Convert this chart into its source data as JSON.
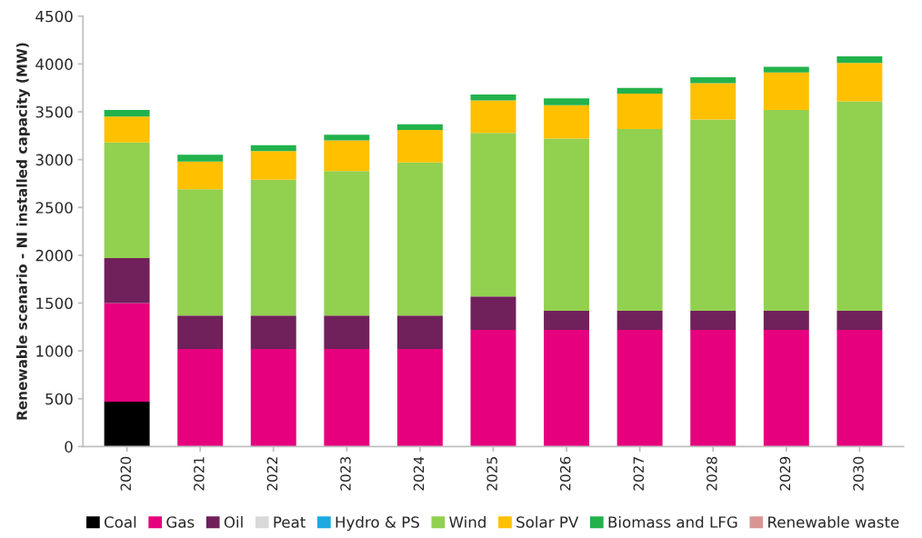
{
  "chart_data": {
    "type": "bar",
    "stacked": true,
    "ylabel": "Renewable scenario - NI installed capacity (MW)",
    "categories": [
      "2020",
      "2021",
      "2022",
      "2023",
      "2024",
      "2025",
      "2026",
      "2027",
      "2028",
      "2029",
      "2030"
    ],
    "series": [
      {
        "name": "Coal",
        "color": "#000000",
        "values": [
          470,
          null,
          null,
          null,
          null,
          null,
          null,
          null,
          null,
          null,
          null
        ]
      },
      {
        "name": "Gas",
        "color": "#e6007e",
        "values": [
          1030,
          1020,
          1020,
          1020,
          1020,
          1220,
          1220,
          1220,
          1220,
          1220,
          1220
        ]
      },
      {
        "name": "Oil",
        "color": "#70205a",
        "values": [
          470,
          350,
          350,
          350,
          350,
          350,
          200,
          200,
          200,
          200,
          200
        ]
      },
      {
        "name": "Peat",
        "color": "#d9d9d9",
        "values": [
          null,
          null,
          null,
          null,
          null,
          null,
          null,
          null,
          null,
          null,
          null
        ]
      },
      {
        "name": "Hydro & PS",
        "color": "#1fa9e1",
        "values": [
          null,
          null,
          null,
          null,
          null,
          null,
          null,
          null,
          null,
          null,
          null
        ]
      },
      {
        "name": "Wind",
        "color": "#92d050",
        "values": [
          1210,
          1320,
          1420,
          1510,
          1600,
          1710,
          1800,
          1900,
          2000,
          2100,
          2190
        ]
      },
      {
        "name": "Solar PV",
        "color": "#ffc000",
        "values": [
          270,
          290,
          300,
          320,
          340,
          340,
          350,
          370,
          380,
          390,
          400
        ]
      },
      {
        "name": "Biomass and LFG",
        "color": "#22b24c",
        "values": [
          70,
          70,
          60,
          60,
          60,
          60,
          70,
          60,
          60,
          60,
          70
        ]
      },
      {
        "name": "Renewable waste",
        "color": "#d99594",
        "values": [
          null,
          null,
          null,
          null,
          null,
          null,
          null,
          null,
          null,
          null,
          null
        ]
      }
    ],
    "ylim": [
      0,
      4500
    ],
    "yticks": [
      0,
      500,
      1000,
      1500,
      2000,
      2500,
      3000,
      3500,
      4000,
      4500
    ],
    "legend": "bottom",
    "grid": false
  }
}
